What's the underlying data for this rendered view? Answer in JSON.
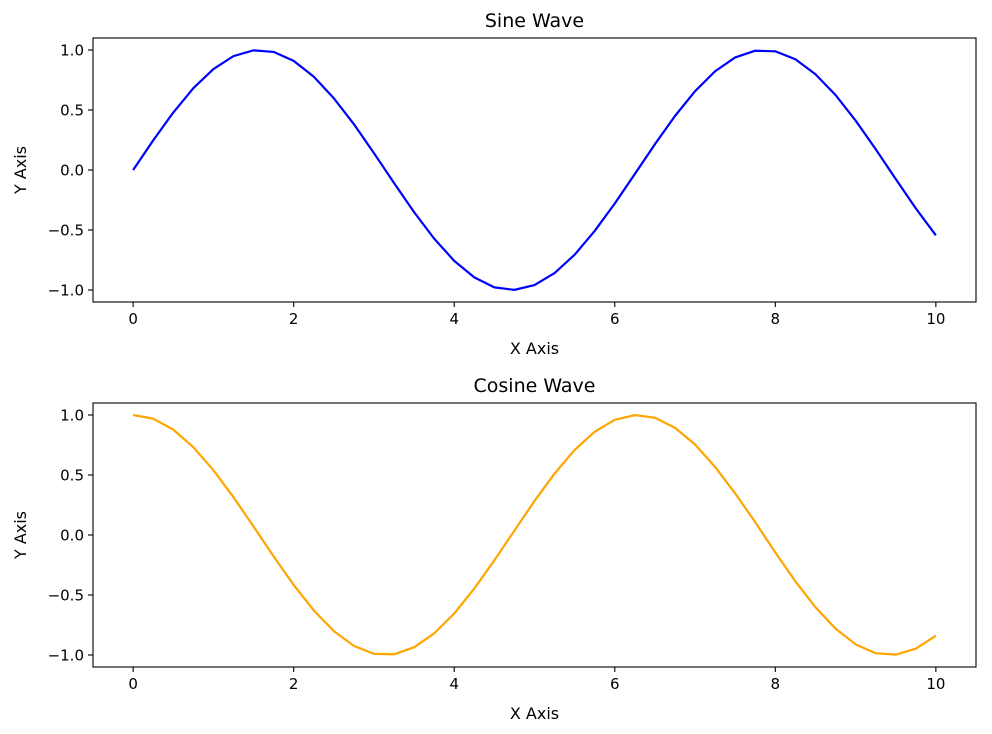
{
  "chart_data": [
    {
      "type": "line",
      "title": "Sine Wave",
      "xlabel": "X Axis",
      "ylabel": "Y Axis",
      "xlim": [
        -0.5,
        10.5
      ],
      "ylim": [
        -1.1,
        1.1
      ],
      "xticks": [
        0,
        2,
        4,
        6,
        8,
        10
      ],
      "xtick_labels": [
        "0",
        "2",
        "4",
        "6",
        "8",
        "10"
      ],
      "yticks": [
        -1.0,
        -0.5,
        0.0,
        0.5,
        1.0
      ],
      "ytick_labels": [
        "−1.0",
        "−0.5",
        "0.0",
        "0.5",
        "1.0"
      ],
      "grid": false,
      "series": [
        {
          "color": "#0000ff",
          "x": [
            0,
            0.25,
            0.5,
            0.75,
            1,
            1.25,
            1.5,
            1.75,
            2,
            2.25,
            2.5,
            2.75,
            3,
            3.25,
            3.5,
            3.75,
            4,
            4.25,
            4.5,
            4.75,
            5,
            5.25,
            5.5,
            5.75,
            6,
            6.25,
            6.5,
            6.75,
            7,
            7.25,
            7.5,
            7.75,
            8,
            8.25,
            8.5,
            8.75,
            9,
            9.25,
            9.5,
            9.75,
            10
          ],
          "y": [
            0.0,
            0.247,
            0.479,
            0.682,
            0.841,
            0.949,
            0.997,
            0.984,
            0.909,
            0.778,
            0.598,
            0.382,
            0.141,
            -0.108,
            -0.351,
            -0.572,
            -0.757,
            -0.895,
            -0.978,
            -0.999,
            -0.959,
            -0.859,
            -0.706,
            -0.508,
            -0.279,
            -0.033,
            0.215,
            0.45,
            0.657,
            0.823,
            0.938,
            0.994,
            0.989,
            0.923,
            0.798,
            0.625,
            0.412,
            0.174,
            -0.075,
            -0.32,
            -0.544
          ]
        }
      ]
    },
    {
      "type": "line",
      "title": "Cosine Wave",
      "xlabel": "X Axis",
      "ylabel": "Y Axis",
      "xlim": [
        -0.5,
        10.5
      ],
      "ylim": [
        -1.1,
        1.1
      ],
      "xticks": [
        0,
        2,
        4,
        6,
        8,
        10
      ],
      "xtick_labels": [
        "0",
        "2",
        "4",
        "6",
        "8",
        "10"
      ],
      "yticks": [
        -1.0,
        -0.5,
        0.0,
        0.5,
        1.0
      ],
      "ytick_labels": [
        "−1.0",
        "−0.5",
        "0.0",
        "0.5",
        "1.0"
      ],
      "grid": false,
      "series": [
        {
          "color": "#ffa500",
          "x": [
            0,
            0.25,
            0.5,
            0.75,
            1,
            1.25,
            1.5,
            1.75,
            2,
            2.25,
            2.5,
            2.75,
            3,
            3.25,
            3.5,
            3.75,
            4,
            4.25,
            4.5,
            4.75,
            5,
            5.25,
            5.5,
            5.75,
            6,
            6.25,
            6.5,
            6.75,
            7,
            7.25,
            7.5,
            7.75,
            8,
            8.25,
            8.5,
            8.75,
            9,
            9.25,
            9.5,
            9.75,
            10
          ],
          "y": [
            1.0,
            0.969,
            0.878,
            0.732,
            0.54,
            0.315,
            0.071,
            -0.178,
            -0.416,
            -0.628,
            -0.801,
            -0.924,
            -0.99,
            -0.994,
            -0.936,
            -0.82,
            -0.654,
            -0.446,
            -0.211,
            0.037,
            0.284,
            0.512,
            0.709,
            0.861,
            0.96,
            0.999,
            0.977,
            0.894,
            0.754,
            0.567,
            0.347,
            0.106,
            -0.146,
            -0.386,
            -0.602,
            -0.78,
            -0.911,
            -0.985,
            -0.997,
            -0.947,
            -0.839
          ]
        }
      ]
    }
  ]
}
